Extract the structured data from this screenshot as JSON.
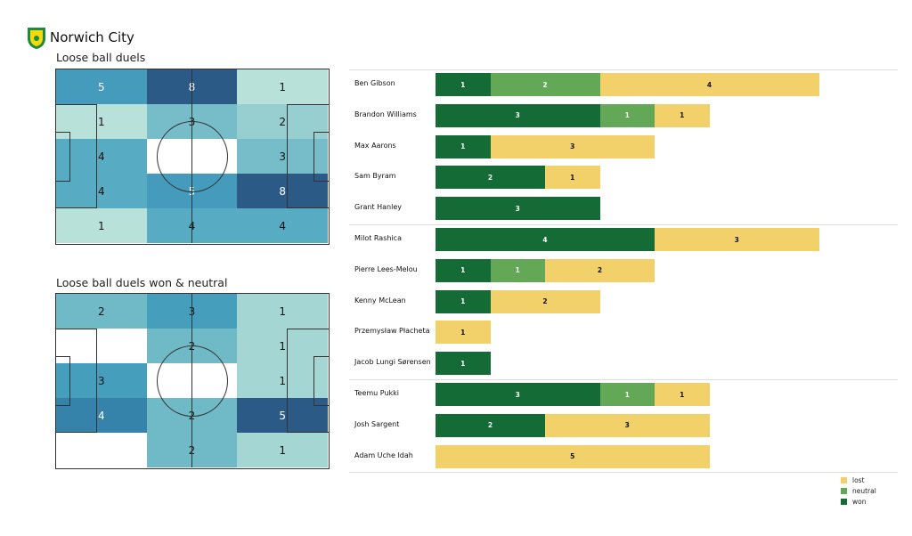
{
  "team": "Norwich City",
  "colors": {
    "won": "#146b36",
    "neutral": "#63a857",
    "lost": "#f2d16b"
  },
  "chart_data": [
    {
      "type": "heatmap",
      "title": "Loose ball duels",
      "grid": [
        [
          5,
          8,
          1
        ],
        [
          1,
          3,
          2
        ],
        [
          4,
          0,
          3
        ],
        [
          4,
          5,
          8
        ],
        [
          1,
          4,
          4
        ]
      ]
    },
    {
      "type": "heatmap",
      "title": "Loose ball duels won & neutral",
      "grid": [
        [
          2,
          3,
          1
        ],
        [
          0,
          2,
          1
        ],
        [
          3,
          0,
          1
        ],
        [
          4,
          2,
          5
        ],
        [
          0,
          2,
          1
        ]
      ]
    },
    {
      "type": "bar",
      "orientation": "horizontal",
      "stacked": true,
      "legend": [
        "lost",
        "neutral",
        "won"
      ],
      "legend_position": "bottom-right",
      "groups": [
        [
          "Ben Gibson",
          "Brandon Williams",
          "Max Aarons",
          "Sam Byram",
          "Grant Hanley"
        ],
        [
          "Milot Rashica",
          "Pierre Lees-Melou",
          "Kenny McLean",
          "Przemysław Płacheta",
          "Jacob  Lungi Sørensen"
        ],
        [
          "Teemu Pukki",
          "Josh Sargent",
          "Adam Uche Idah"
        ]
      ],
      "categories": [
        "Ben Gibson",
        "Brandon Williams",
        "Max Aarons",
        "Sam Byram",
        "Grant Hanley",
        "Milot Rashica",
        "Pierre Lees-Melou",
        "Kenny McLean",
        "Przemysław Płacheta",
        "Jacob  Lungi Sørensen",
        "Teemu Pukki",
        "Josh Sargent",
        "Adam Uche Idah"
      ],
      "series": [
        {
          "name": "won",
          "values": [
            1,
            3,
            1,
            2,
            3,
            4,
            1,
            1,
            0,
            1,
            3,
            2,
            0
          ]
        },
        {
          "name": "neutral",
          "values": [
            2,
            1,
            0,
            0,
            0,
            0,
            1,
            0,
            0,
            0,
            1,
            0,
            0
          ]
        },
        {
          "name": "lost",
          "values": [
            4,
            1,
            3,
            1,
            0,
            3,
            2,
            2,
            1,
            0,
            1,
            3,
            5
          ]
        }
      ]
    }
  ]
}
